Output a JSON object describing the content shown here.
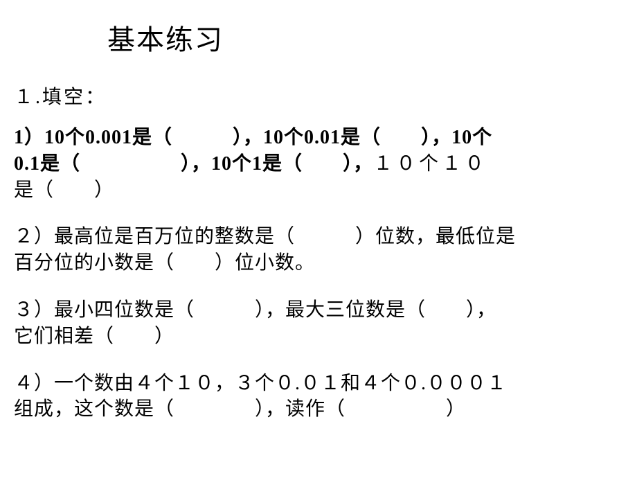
{
  "title": "基本练习",
  "section_heading": "１.填空：",
  "q1": {
    "part1_a": "1）10个0.001是（",
    "part1_b": "），10个0.01是（",
    "part1_c": "），10个",
    "part2_a": "0.1是（",
    "part2_b": "），10个1是（",
    "part2_c": "），",
    "part2_d": "１０个１０",
    "part3": "是（　　）"
  },
  "q2": {
    "line1": "２）最高位是百万位的整数是（　　　）位数，最低位是",
    "line2": "百分位的小数是（　　）位小数。"
  },
  "q3": {
    "line1": "３）最小四位数是（　　　），最大三位数是（　　），",
    "line2": "它们相差（　　）"
  },
  "q4": {
    "line1": "４）一个数由４个１０，３个０.０１和４个０.０００１",
    "line2": "组成，这个数是（　　　　），读作（　　　　　）"
  },
  "colors": {
    "background": "#ffffff",
    "text": "#000000"
  },
  "fonts": {
    "title_size": 40,
    "body_size": 28,
    "family": "SimSun"
  }
}
